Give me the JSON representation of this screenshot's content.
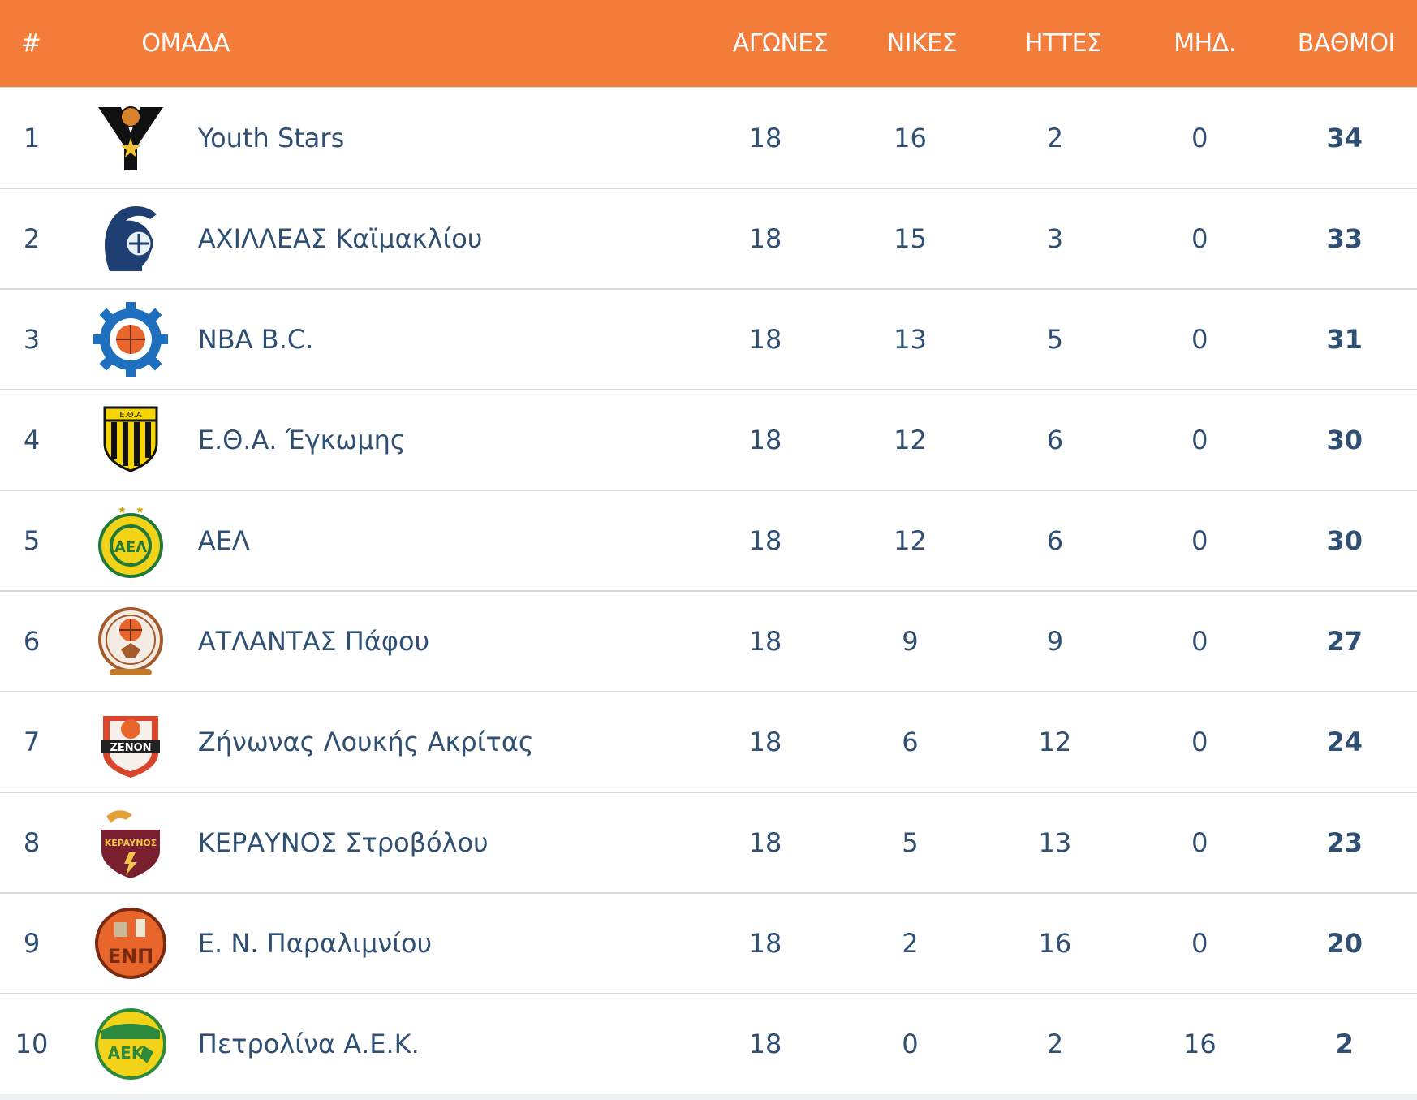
{
  "header": {
    "pos": "#",
    "team": "ΟΜΑΔΑ",
    "played": "ΑΓΩΝΕΣ",
    "wins": "ΝΙΚΕΣ",
    "losses": "ΗΤΤΕΣ",
    "zero": "ΜΗΔ.",
    "points": "ΒΑΘΜΟΙ"
  },
  "colors": {
    "header_bg": "#f47d3c",
    "text": "#2f4f73",
    "row_divider": "#d9d9d9"
  },
  "rows": [
    {
      "pos": "1",
      "team": "Youth Stars",
      "played": "18",
      "wins": "16",
      "losses": "2",
      "zero": "0",
      "points": "34",
      "logo": "youth-stars-logo-icon"
    },
    {
      "pos": "2",
      "team": "ΑΧΙΛΛΕΑΣ Καϊμακλίου",
      "played": "18",
      "wins": "15",
      "losses": "3",
      "zero": "0",
      "points": "33",
      "logo": "achilleas-logo-icon"
    },
    {
      "pos": "3",
      "team": "NBA B.C.",
      "played": "18",
      "wins": "13",
      "losses": "5",
      "zero": "0",
      "points": "31",
      "logo": "nba-bc-logo-icon"
    },
    {
      "pos": "4",
      "team": "Ε.Θ.Α. Έγκωμης",
      "played": "18",
      "wins": "12",
      "losses": "6",
      "zero": "0",
      "points": "30",
      "logo": "etha-logo-icon"
    },
    {
      "pos": "5",
      "team": "ΑΕΛ",
      "played": "18",
      "wins": "12",
      "losses": "6",
      "zero": "0",
      "points": "30",
      "logo": "ael-logo-icon"
    },
    {
      "pos": "6",
      "team": "ΑΤΛΑΝΤΑΣ Πάφου",
      "played": "18",
      "wins": "9",
      "losses": "9",
      "zero": "0",
      "points": "27",
      "logo": "atlantas-logo-icon"
    },
    {
      "pos": "7",
      "team": "Ζήνωνας Λουκής Ακρίτας",
      "played": "18",
      "wins": "6",
      "losses": "12",
      "zero": "0",
      "points": "24",
      "logo": "zenon-logo-icon"
    },
    {
      "pos": "8",
      "team": "ΚΕΡΑΥΝΟΣ Στροβόλου",
      "played": "18",
      "wins": "5",
      "losses": "13",
      "zero": "0",
      "points": "23",
      "logo": "keravnos-logo-icon"
    },
    {
      "pos": "9",
      "team": "Ε. Ν. Παραλιμνίου",
      "played": "18",
      "wins": "2",
      "losses": "16",
      "zero": "0",
      "points": "20",
      "logo": "enp-logo-icon"
    },
    {
      "pos": "10",
      "team": "Πετρολίνα Α.Ε.Κ.",
      "played": "18",
      "wins": "0",
      "losses": "2",
      "zero": "16",
      "points": "2",
      "logo": "aek-logo-icon"
    }
  ],
  "logo_text": {
    "etha": "E.Θ.A",
    "ael": "AEΛ",
    "zenon": "ZENON",
    "keravnos": "KEPAYNOΣ",
    "enp": "ENΠ",
    "aek": "AEK"
  }
}
